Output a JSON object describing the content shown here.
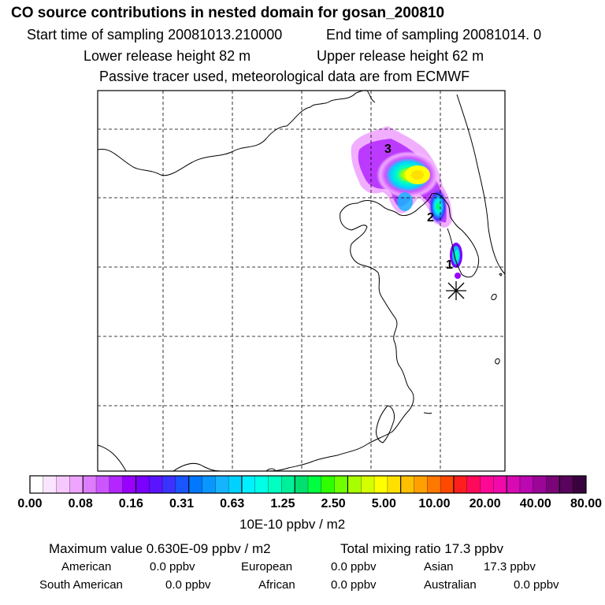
{
  "header": {
    "title": "CO  source contributions in nested domain for gosan_200810",
    "start_time": "Start time of sampling 20081013.210000",
    "end_time": "End time of sampling 20081014.     0",
    "lower_height": "Lower release height   82 m",
    "upper_height": "Upper release height   62 m",
    "tracer_note": "Passive tracer used, meteorological data are from ECMWF"
  },
  "chart_data": {
    "type": "heatmap",
    "title": "CO  source contributions in nested domain for gosan_200810",
    "grid": true,
    "trajectory_labels": [
      "1",
      "2",
      "3"
    ],
    "receptor": "gosan",
    "colorbar": {
      "unit": "10E-10 ppbv / m2",
      "tick_labels": [
        "0.00",
        "0.08",
        "0.16",
        "0.31",
        "0.63",
        "1.25",
        "2.50",
        "5.00",
        "10.00",
        "20.00",
        "40.00",
        "80.00"
      ],
      "colors": [
        "#ffffff",
        "#fbe4ff",
        "#f6c8ff",
        "#efa5ff",
        "#de7cff",
        "#cc55ff",
        "#b326ff",
        "#9900ff",
        "#7a00ff",
        "#5a14ff",
        "#3a32ff",
        "#1a55ff",
        "#0078ff",
        "#0a96ff",
        "#16b4ff",
        "#00d2ff",
        "#00f0ff",
        "#00ffe6",
        "#00ffc0",
        "#00f09a",
        "#00e070",
        "#00ff40",
        "#30ff00",
        "#70ff00",
        "#a8ff00",
        "#d4ff00",
        "#ffff00",
        "#ffe000",
        "#ffc000",
        "#ffa000",
        "#ff7800",
        "#ff4800",
        "#ff1e1e",
        "#ff0a5a",
        "#ff0896",
        "#f00aaa",
        "#d80ab4",
        "#bb08b0",
        "#9a0698",
        "#7a0478",
        "#58035c",
        "#38023e"
      ]
    }
  },
  "stats": {
    "maximum_value": "Maximum value  0.630E-09 ppbv / m2",
    "total_mixing": "Total mixing ratio        17.3 ppbv",
    "regions": [
      {
        "name": "American",
        "value": "0.0 ppbv"
      },
      {
        "name": "European",
        "value": "0.0 ppbv"
      },
      {
        "name": "Asian",
        "value": "17.3 ppbv"
      },
      {
        "name": "South American",
        "value": "0.0 ppbv"
      },
      {
        "name": "African",
        "value": "0.0 ppbv"
      },
      {
        "name": "Australian",
        "value": "0.0 ppbv"
      }
    ]
  }
}
